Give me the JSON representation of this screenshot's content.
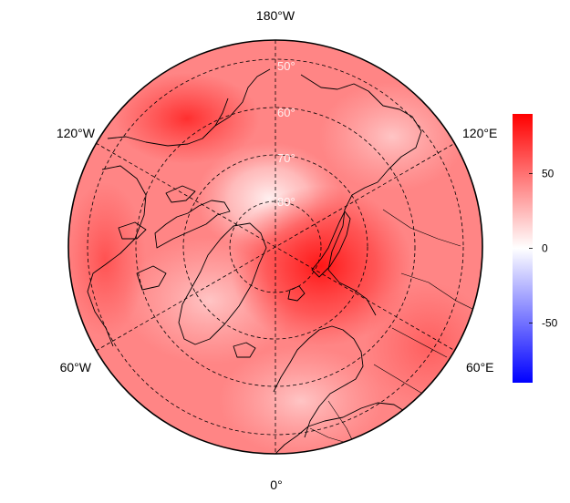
{
  "map": {
    "projection": "north-polar-stereographic",
    "center_lon_at_bottom": "0°",
    "lon_labels": {
      "top": "180°W",
      "bottom": "0°",
      "upper_left": "120°W",
      "upper_right": "120°E",
      "lower_left": "60°W",
      "lower_right": "60°E"
    },
    "lat_labels": [
      "50°",
      "60°",
      "70°",
      "80°"
    ],
    "graticule": "dashed"
  },
  "colorbar": {
    "range": [
      -90,
      90
    ],
    "ticks": [
      {
        "value": 50,
        "label": "50"
      },
      {
        "value": 0,
        "label": "0"
      },
      {
        "value": -50,
        "label": "-50"
      }
    ],
    "colors": {
      "low": "#0000ff",
      "mid": "#ffffff",
      "high": "#ff0000"
    }
  }
}
